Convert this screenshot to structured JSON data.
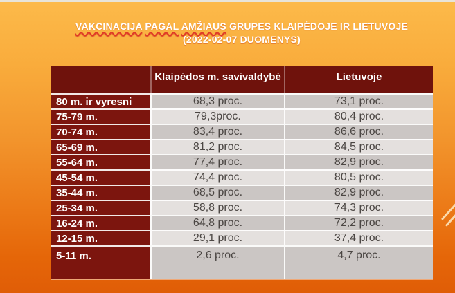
{
  "slide": {
    "title_words": {
      "w1": "VAKCINACIJA",
      "w2": "PAGAL",
      "w3": "AMŽIAUS",
      "rest": "GRUPES KLAIPĖDOJE IR LIETUVOJE"
    },
    "title_line2": "(2022-02-07 DUOMENYS)"
  },
  "chart_data": {
    "type": "table",
    "title": "VAKCINACIJA PAGAL AMŽIAUS GRUPES KLAIPĖDOJE IR LIETUVOJE (2022-02-07 DUOMENYS)",
    "columns": [
      "",
      "Klaipėdos m. savivaldybė",
      "Lietuvoje"
    ],
    "categories": [
      "80 m. ir vyresni",
      "75-79 m.",
      "70-74 m.",
      "65-69 m.",
      "55-64 m.",
      "45-54 m.",
      "35-44 m.",
      "25-34 m.",
      "16-24 m.",
      "12-15 m.",
      "5-11 m."
    ],
    "series": [
      {
        "name": "Klaipėdos m. savivaldybė",
        "values": [
          68.3,
          79.3,
          83.4,
          81.2,
          77.4,
          74.4,
          68.5,
          58.8,
          64.8,
          29.1,
          2.6
        ]
      },
      {
        "name": "Lietuvoje",
        "values": [
          73.1,
          80.4,
          86.6,
          84.5,
          82.9,
          80.5,
          82.9,
          74.3,
          72.2,
          37.4,
          4.7
        ]
      }
    ],
    "unit": "proc.",
    "rows": [
      {
        "age": "80 m. ir vyresni",
        "klaipeda": "68,3 proc.",
        "lietuva": "73,1 proc."
      },
      {
        "age": "75-79 m.",
        "klaipeda": "79,3proc.",
        "lietuva": "80,4 proc."
      },
      {
        "age": "70-74 m.",
        "klaipeda": "83,4 proc.",
        "lietuva": "86,6 proc."
      },
      {
        "age": "65-69 m.",
        "klaipeda": "81,2 proc.",
        "lietuva": "84,5 proc."
      },
      {
        "age": "55-64 m.",
        "klaipeda": "77,4 proc.",
        "lietuva": "82,9 proc."
      },
      {
        "age": "45-54 m.",
        "klaipeda": "74,4 proc.",
        "lietuva": "80,5 proc."
      },
      {
        "age": "35-44 m.",
        "klaipeda": "68,5 proc.",
        "lietuva": "82,9 proc."
      },
      {
        "age": "25-34 m.",
        "klaipeda": "58,8 proc.",
        "lietuva": "74,3 proc."
      },
      {
        "age": "16-24 m.",
        "klaipeda": "64,8 proc.",
        "lietuva": "72,2 proc."
      },
      {
        "age": "12-15 m.",
        "klaipeda": "29,1 proc.",
        "lietuva": "37,4 proc."
      },
      {
        "age": "5-11 m.",
        "klaipeda": "2,6 proc.",
        "lietuva": "4,7 proc."
      }
    ]
  },
  "colors": {
    "background_top": "#FCBA4A",
    "background_bottom": "#E05D07",
    "top_strip": "#E8E4D8",
    "header_bg": "#6F120C",
    "age_cell_bg": "#7C150E",
    "row_dark_gray": "#CBC6C4",
    "row_light_gray": "#E4E0DE",
    "title_text": "#FFFFFF",
    "spellcheck_underline": "#E03A28",
    "value_text": "#4B4643"
  }
}
